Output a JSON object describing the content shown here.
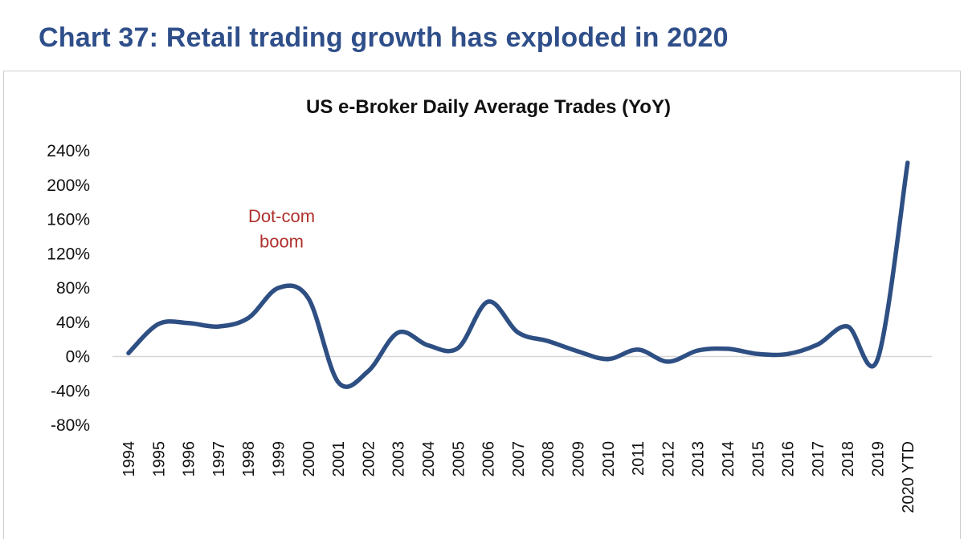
{
  "page_title": "Chart 37: Retail trading growth has exploded in 2020",
  "chart_data": {
    "type": "line",
    "title": "US e-Broker Daily Average Trades (YoY)",
    "xlabel": "",
    "ylabel": "",
    "ylim": [
      -80,
      240
    ],
    "y_ticks": [
      "240%",
      "200%",
      "160%",
      "120%",
      "80%",
      "40%",
      "0%",
      "-40%",
      "-80%"
    ],
    "y_tick_values": [
      240,
      200,
      160,
      120,
      80,
      40,
      0,
      -40,
      -80
    ],
    "categories": [
      "1994",
      "1995",
      "1996",
      "1997",
      "1998",
      "1999",
      "2000",
      "2001",
      "2002",
      "2003",
      "2004",
      "2005",
      "2006",
      "2007",
      "2008",
      "2009",
      "2010",
      "2011",
      "2012",
      "2013",
      "2014",
      "2015",
      "2016",
      "2017",
      "2018",
      "2019",
      "2020 YTD"
    ],
    "series": [
      {
        "name": "US e-Broker Daily Average Trades (YoY)",
        "values": [
          4,
          38,
          39,
          35,
          45,
          80,
          68,
          -30,
          -17,
          28,
          13,
          10,
          64,
          28,
          18,
          6,
          -3,
          8,
          -6,
          7,
          9,
          3,
          3,
          14,
          35,
          -3,
          226
        ],
        "color": "#2e4f83"
      }
    ],
    "annotations": [
      {
        "lines": [
          "Dot-com",
          "boom"
        ],
        "category": "1999",
        "value": 155,
        "color": "#b0302c"
      }
    ],
    "grid": false,
    "zero_line": true
  }
}
